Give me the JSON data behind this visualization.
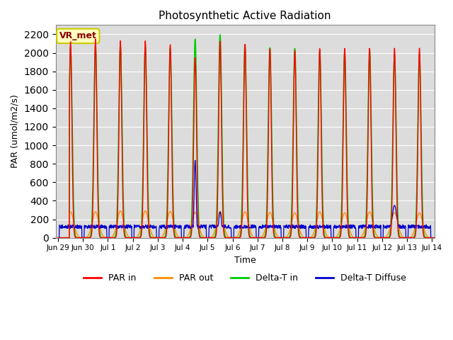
{
  "title": "Photosynthetic Active Radiation",
  "ylabel": "PAR (umol/m2/s)",
  "xlabel": "Time",
  "ylim": [
    0,
    2300
  ],
  "yticks": [
    0,
    200,
    400,
    600,
    800,
    1000,
    1200,
    1400,
    1600,
    1800,
    2000,
    2200
  ],
  "background_color": "#dcdcdc",
  "legend_label": "VR_met",
  "series_colors": {
    "par_in": "#ff0000",
    "par_out": "#ff8c00",
    "delta_t_in": "#00cc00",
    "delta_t_diffuse": "#0000cd"
  },
  "series_names": [
    "PAR in",
    "PAR out",
    "Delta-T in",
    "Delta-T Diffuse"
  ],
  "x_tick_labels": [
    "Jun 29",
    "Jun 30",
    "Jul 1",
    "Jul 2",
    "Jul 3",
    "Jul 4",
    "Jul 5",
    "Jul 6",
    "Jul 7",
    "Jul 8",
    "Jul 9",
    "Jul 10",
    "Jul 11",
    "Jul 12",
    "Jul 13",
    "Jul 14"
  ],
  "par_in_peaks": [
    2120,
    2150,
    2130,
    2130,
    2090,
    1950,
    2130,
    2100,
    2050,
    2030,
    2050,
    2050,
    2050,
    2050,
    2050,
    0
  ],
  "par_out_peaks": [
    280,
    280,
    290,
    290,
    285,
    275,
    285,
    280,
    275,
    270,
    280,
    270,
    280,
    275,
    270,
    0
  ],
  "delta_t_in_peaks": [
    2060,
    2080,
    2080,
    2070,
    2050,
    2150,
    2200,
    2080,
    2060,
    2050,
    2020,
    2010,
    2040,
    1980,
    1980,
    0
  ],
  "par_in_sigma": 0.055,
  "par_out_sigma": 0.13,
  "delta_t_in_sigma": 0.065,
  "diffuse_base": 100,
  "diffuse_noise": 40,
  "diffuse_spike_day5_val": 840,
  "diffuse_spike_day6_val": 280,
  "diffuse_spike_day13_val": 350,
  "n_days": 16,
  "n_per_day": 96
}
